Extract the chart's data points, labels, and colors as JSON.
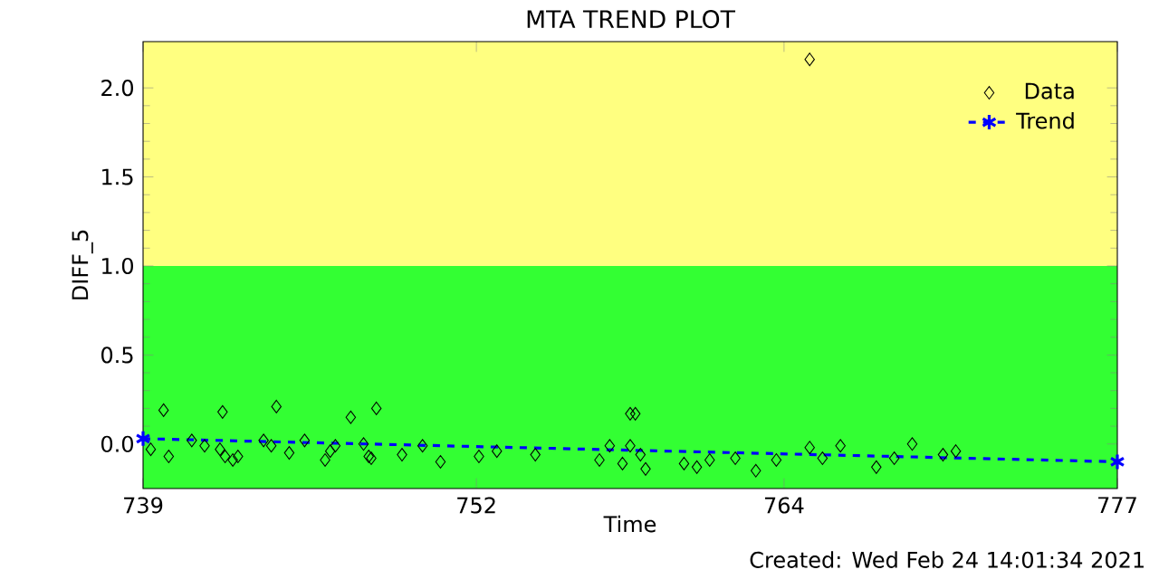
{
  "chart_data": {
    "type": "scatter",
    "title": "MTA TREND PLOT",
    "xlabel": "Time",
    "ylabel": "DIFF_5",
    "xlim": [
      739,
      777
    ],
    "xticks": [
      739,
      752,
      764,
      777
    ],
    "ylim": [
      -0.25,
      2.26
    ],
    "yticks": [
      {
        "value": 0,
        "label": "0.0"
      },
      {
        "value": 0.5,
        "label": "0.5"
      },
      {
        "value": 1,
        "label": "1.0"
      },
      {
        "value": 1.5,
        "label": "1.5"
      },
      {
        "value": 2,
        "label": "2.0"
      }
    ],
    "bands": [
      {
        "axis": "y",
        "from": -0.25,
        "to": 1.0,
        "color": "#33ff33"
      },
      {
        "axis": "y",
        "from": 1.0,
        "to": 2.26,
        "color": "#ffff80"
      }
    ],
    "legend": "top right",
    "grid": false,
    "series": [
      {
        "name": "Data",
        "marker": "diamond",
        "color": "#000000",
        "x": [
          739.3,
          739.8,
          740.0,
          740.9,
          741.4,
          742.0,
          742.1,
          742.2,
          742.5,
          742.7,
          743.7,
          744.0,
          744.2,
          744.7,
          745.3,
          746.1,
          746.3,
          746.5,
          747.1,
          747.6,
          747.8,
          747.9,
          748.1,
          749.1,
          749.9,
          750.6,
          752.1,
          752.8,
          754.3,
          756.8,
          757.2,
          757.7,
          758.0,
          758.0,
          758.2,
          758.4,
          758.6,
          760.1,
          760.6,
          761.1,
          762.1,
          762.9,
          763.7,
          765.0,
          765.0,
          765.5,
          766.2,
          767.6,
          768.3,
          769.0,
          770.2,
          770.7
        ],
        "values": [
          -0.03,
          0.19,
          -0.07,
          0.02,
          -0.01,
          -0.03,
          0.18,
          -0.07,
          -0.09,
          -0.07,
          0.02,
          -0.01,
          0.21,
          -0.05,
          0.02,
          -0.09,
          -0.04,
          -0.01,
          0.15,
          0.0,
          -0.07,
          -0.08,
          0.2,
          -0.06,
          -0.01,
          -0.1,
          -0.07,
          -0.04,
          -0.06,
          -0.09,
          -0.01,
          -0.11,
          0.17,
          -0.01,
          0.17,
          -0.06,
          -0.14,
          -0.11,
          -0.13,
          -0.09,
          -0.08,
          -0.15,
          -0.09,
          2.16,
          -0.02,
          -0.08,
          -0.01,
          -0.13,
          -0.08,
          0.0,
          -0.06,
          -0.04
        ]
      },
      {
        "name": "Trend",
        "type": "line",
        "marker": "cross",
        "line_style": "dashed",
        "color": "#0000ff",
        "x": [
          739,
          777
        ],
        "values": [
          0.03,
          -0.1
        ]
      }
    ],
    "annotations": [
      "Created: Wed Feb 24 14:01:34 2021"
    ]
  }
}
